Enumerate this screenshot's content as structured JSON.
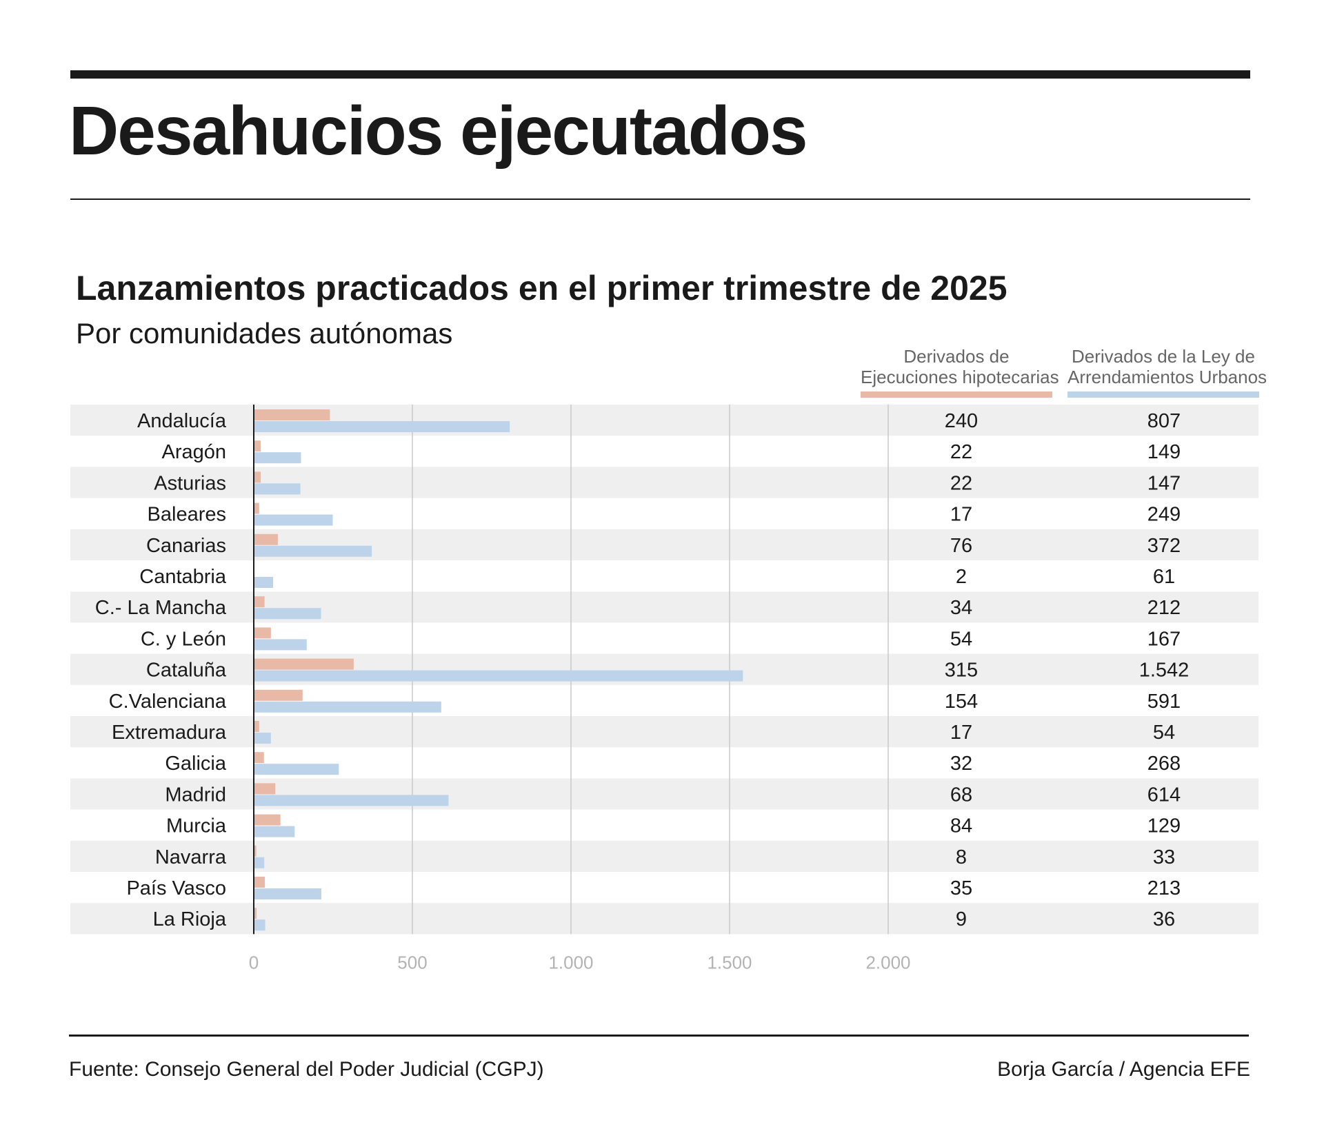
{
  "header": {
    "title": "Desahucios ejecutados",
    "subtitle": "Lanzamientos practicados en el primer trimestre de 2025",
    "subsubtitle": "Por comunidades autónomas"
  },
  "legend": {
    "mortgage_line1": "Derivados de",
    "mortgage_line2": "Ejecuciones hipotecarias",
    "rent_line1": "Derivados de la Ley de",
    "rent_line2": "Arrendamientos Urbanos"
  },
  "footer": {
    "source": "Fuente: Consejo General del Poder Judicial (CGPJ)",
    "credit": "Borja García / Agencia EFE"
  },
  "colors": {
    "mortgage": "#e8b9a6",
    "rent": "#bcd3ea",
    "row_shade": "#efefef",
    "gridline": "#c8c8c8",
    "tick_label": "#b3b3b3"
  },
  "chart_data": {
    "type": "bar",
    "orientation": "horizontal",
    "categories": [
      "Andalucía",
      "Aragón",
      "Asturias",
      "Baleares",
      "Canarias",
      "Cantabria",
      "C.- La Mancha",
      "C. y León",
      "Cataluña",
      "C.Valenciana",
      "Extremadura",
      "Galicia",
      "Madrid",
      "Murcia",
      "Navarra",
      "País Vasco",
      "La Rioja"
    ],
    "series": [
      {
        "name": "Derivados de Ejecuciones hipotecarias",
        "values": [
          240,
          22,
          22,
          17,
          76,
          2,
          34,
          54,
          315,
          154,
          17,
          32,
          68,
          84,
          8,
          35,
          9
        ],
        "labels": [
          "240",
          "22",
          "22",
          "17",
          "76",
          "2",
          "34",
          "54",
          "315",
          "154",
          "17",
          "32",
          "68",
          "84",
          "8",
          "35",
          "9"
        ]
      },
      {
        "name": "Derivados de la Ley de Arrendamientos Urbanos",
        "values": [
          807,
          149,
          147,
          249,
          372,
          61,
          212,
          167,
          1542,
          591,
          54,
          268,
          614,
          129,
          33,
          213,
          36
        ],
        "labels": [
          "807",
          "149",
          "147",
          "249",
          "372",
          "61",
          "212",
          "167",
          "1.542",
          "591",
          "54",
          "268",
          "614",
          "129",
          "33",
          "213",
          "36"
        ]
      }
    ],
    "x_ticks": [
      0,
      500,
      1000,
      1500,
      2000
    ],
    "x_tick_labels": [
      "0",
      "500",
      "1.000",
      "1.500",
      "2.000"
    ],
    "xlim": [
      0,
      2000
    ],
    "grid": true
  }
}
